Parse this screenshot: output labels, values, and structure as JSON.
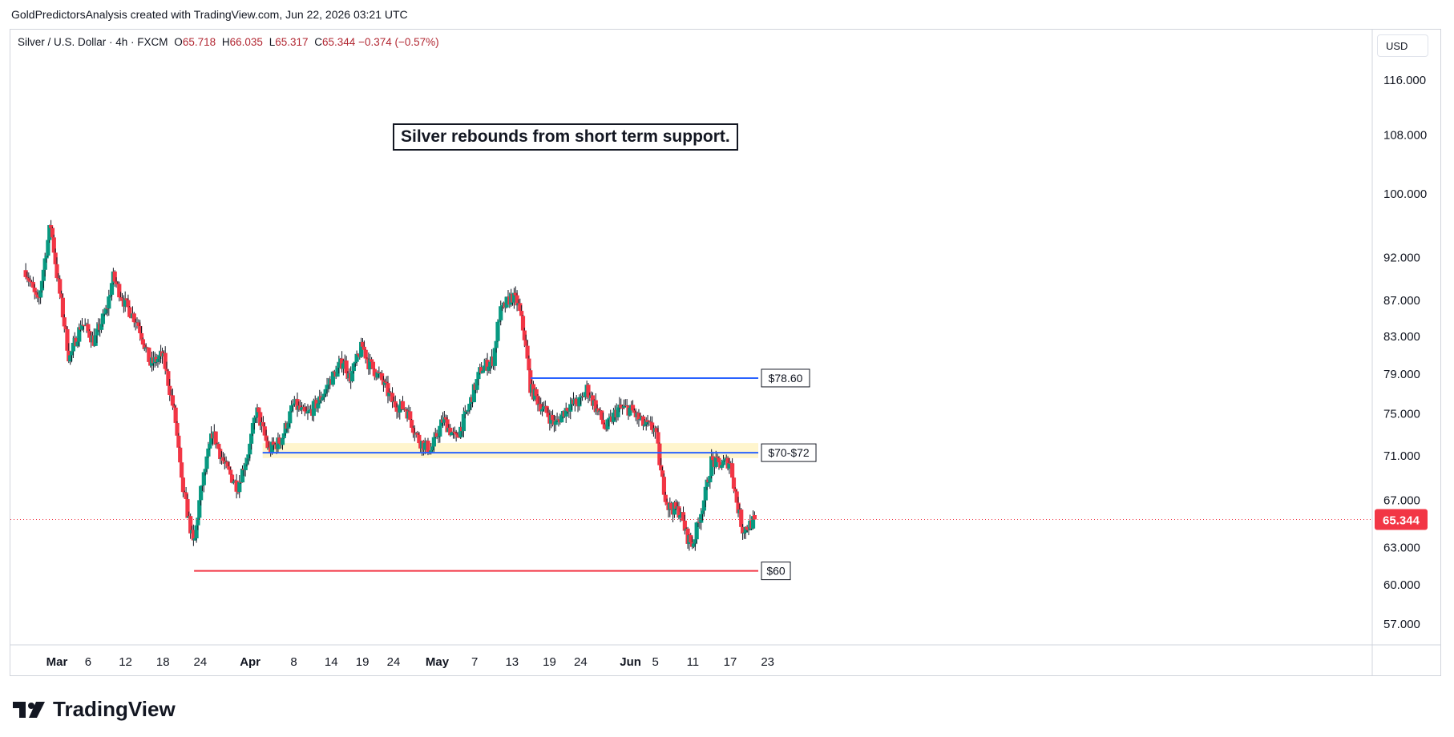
{
  "header": {
    "attribution": "GoldPredictorsAnalysis created with TradingView.com, Jun 22, 2026 03:21 UTC"
  },
  "legend": {
    "symbol": "Silver / U.S. Dollar · 4h · FXCM",
    "open_label": "O",
    "open": "65.718",
    "high_label": "H",
    "high": "66.035",
    "low_label": "L",
    "low": "65.317",
    "close_label": "C",
    "close": "65.344",
    "change": "−0.374 (−0.57%)"
  },
  "currency": "USD",
  "annotation": "Silver rebounds from short term support.",
  "brand": {
    "name": "TradingView",
    "icon": "tradingview-logo-icon"
  },
  "colors": {
    "up": "#089981",
    "down": "#f23645",
    "wick": "#131722",
    "resistance": "#2962ff",
    "support": "#f23645",
    "zone": "#fff3c4",
    "price_tag": "#f23645",
    "grid": "#d1d4dc"
  },
  "chart_data": {
    "type": "candlestick",
    "title": "",
    "xlabel": "",
    "ylabel": "",
    "yscale": "log",
    "ylim": [
      54.5,
      121
    ],
    "x_ticks": [
      "Mar",
      "6",
      "12",
      "18",
      "24",
      "Apr",
      "8",
      "14",
      "19",
      "24",
      "May",
      "7",
      "13",
      "19",
      "24",
      "Jun",
      "5",
      "11",
      "17",
      "23"
    ],
    "y_ticks": [
      "116.000",
      "108.000",
      "100.000",
      "92.000",
      "87.000",
      "83.000",
      "79.000",
      "75.000",
      "71.000",
      "67.000",
      "63.000",
      "60.000",
      "57.000"
    ],
    "last_price": "65.344",
    "price_path": [
      [
        "Feb 24",
        90.5
      ],
      [
        "Feb 26",
        86.5
      ],
      [
        "Feb 28",
        96.2
      ],
      [
        "Mar 1",
        90.0
      ],
      [
        "Mar 3",
        80.5
      ],
      [
        "Mar 5",
        84.5
      ],
      [
        "Mar 7",
        82.5
      ],
      [
        "Mar 9",
        86.0
      ],
      [
        "Mar 10",
        89.7
      ],
      [
        "Mar 12",
        86.5
      ],
      [
        "Mar 14",
        84.5
      ],
      [
        "Mar 16",
        80.0
      ],
      [
        "Mar 18",
        81.0
      ],
      [
        "Mar 20",
        74.5
      ],
      [
        "Mar 21",
        68.5
      ],
      [
        "Mar 22",
        65.8
      ],
      [
        "Mar 23",
        63.0
      ],
      [
        "Mar 24",
        67.5
      ],
      [
        "Mar 26",
        73.2
      ],
      [
        "Mar 28",
        70.0
      ],
      [
        "Mar 30",
        68.2
      ],
      [
        "Apr 1",
        72.0
      ],
      [
        "Apr 2",
        75.5
      ],
      [
        "Apr 4",
        71.5
      ],
      [
        "Apr 6",
        72.5
      ],
      [
        "Apr 8",
        76.0
      ],
      [
        "Apr 10",
        74.8
      ],
      [
        "Apr 12",
        76.2
      ],
      [
        "Apr 14",
        78.5
      ],
      [
        "Apr 16",
        80.5
      ],
      [
        "Apr 17",
        78.5
      ],
      [
        "Apr 19",
        82.0
      ],
      [
        "Apr 20",
        80.2
      ],
      [
        "Apr 22",
        78.5
      ],
      [
        "Apr 24",
        76.0
      ],
      [
        "Apr 26",
        75.5
      ],
      [
        "Apr 28",
        72.5
      ],
      [
        "Apr 30",
        71.5
      ],
      [
        "May 2",
        74.5
      ],
      [
        "May 4",
        72.5
      ],
      [
        "May 6",
        75.5
      ],
      [
        "May 8",
        79.5
      ],
      [
        "May 10",
        80.5
      ],
      [
        "May 11",
        85.5
      ],
      [
        "May 13",
        87.5
      ],
      [
        "May 14",
        86.5
      ],
      [
        "May 15",
        83.0
      ],
      [
        "May 16",
        77.5
      ],
      [
        "May 18",
        75.5
      ],
      [
        "May 20",
        74.0
      ],
      [
        "May 22",
        75.8
      ],
      [
        "May 24",
        76.2
      ],
      [
        "May 25",
        77.5
      ],
      [
        "May 27",
        75.0
      ],
      [
        "May 28",
        73.5
      ],
      [
        "May 30",
        75.5
      ],
      [
        "Jun 1",
        75.5
      ],
      [
        "Jun 3",
        74.0
      ],
      [
        "Jun 5",
        73.5
      ],
      [
        "Jun 6",
        69.0
      ],
      [
        "Jun 7",
        66.5
      ],
      [
        "Jun 9",
        66.0
      ],
      [
        "Jun 10",
        64.0
      ],
      [
        "Jun 11",
        63.2
      ],
      [
        "Jun 13",
        67.5
      ],
      [
        "Jun 14",
        70.5
      ],
      [
        "Jun 15",
        70.2
      ],
      [
        "Jun 17",
        70.5
      ],
      [
        "Jun 18",
        67.0
      ],
      [
        "Jun 19",
        64.5
      ],
      [
        "Jun 20",
        64.8
      ],
      [
        "Jun 21",
        65.34
      ]
    ],
    "levels": [
      {
        "label": "$78.60",
        "value": 78.6,
        "from": "May 16",
        "to": "Jun 17",
        "color": "#2962ff"
      },
      {
        "label": "$70-$72",
        "value": 71.3,
        "from": "Apr 3",
        "to": "Jun 17",
        "color": "#2962ff",
        "zone": [
          70.8,
          72.2
        ]
      },
      {
        "label": "$60",
        "value": 61.1,
        "from": "Mar 23",
        "to": "Jun 17",
        "color": "#f23645"
      }
    ]
  }
}
